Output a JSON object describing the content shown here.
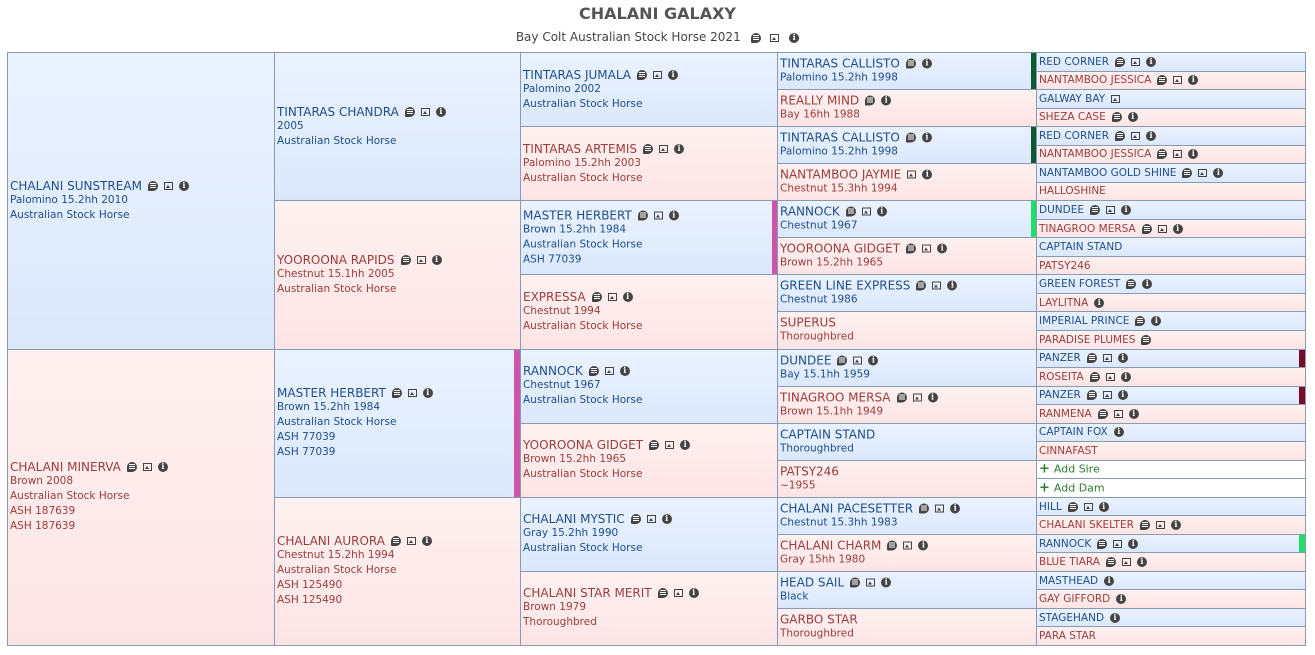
{
  "title": "CHALANI GALAXY",
  "subtitle": "Bay Colt Australian Stock Horse 2021",
  "add_sire": "Add Sire",
  "add_dam": "Add Dam",
  "gen1": [
    {
      "name": "CHALANI SUNSTREAM",
      "lines": [
        "Palomino 15.2hh 2010",
        "Australian Stock Horse"
      ]
    },
    {
      "name": "CHALANI MINERVA",
      "lines": [
        "Brown 2008",
        "Australian Stock Horse",
        "ASH 187639",
        "ASH 187639"
      ]
    }
  ],
  "gen2": [
    {
      "name": "TINTARAS CHANDRA",
      "lines": [
        "2005",
        "Australian Stock Horse"
      ]
    },
    {
      "name": "YOOROONA RAPIDS",
      "lines": [
        "Chestnut 15.1hh 2005",
        "Australian Stock Horse"
      ]
    },
    {
      "name": "MASTER HERBERT",
      "lines": [
        "Brown 15.2hh 1984",
        "Australian Stock Horse",
        "ASH 77039",
        "ASH 77039"
      ]
    },
    {
      "name": "CHALANI AURORA",
      "lines": [
        "Chestnut 15.2hh 1994",
        "Australian Stock Horse",
        "ASH 125490",
        "ASH 125490"
      ]
    }
  ],
  "gen3": [
    {
      "name": "TINTARAS JUMALA",
      "lines": [
        "Palomino 2002",
        "Australian Stock Horse"
      ]
    },
    {
      "name": "TINTARAS ARTEMIS",
      "lines": [
        "Palomino 15.2hh 2003",
        "Australian Stock Horse"
      ]
    },
    {
      "name": "MASTER HERBERT",
      "lines": [
        "Brown 15.2hh 1984",
        "Australian Stock Horse",
        "ASH 77039"
      ]
    },
    {
      "name": "EXPRESSA",
      "lines": [
        "Chestnut 1994",
        "Australian Stock Horse"
      ]
    },
    {
      "name": "RANNOCK",
      "lines": [
        "Chestnut 1967",
        "Australian Stock Horse"
      ]
    },
    {
      "name": "YOOROONA GIDGET",
      "lines": [
        "Brown 15.2hh 1965",
        "Australian Stock Horse"
      ]
    },
    {
      "name": "CHALANI MYSTIC",
      "lines": [
        "Gray 15.2hh 1990",
        "Australian Stock Horse"
      ]
    },
    {
      "name": "CHALANI STAR MERIT",
      "lines": [
        "Brown 1979",
        "Thoroughbred"
      ]
    }
  ],
  "gen4": [
    {
      "name": "TINTARAS CALLISTO",
      "lines": [
        "Palomino 15.2hh 1998"
      ]
    },
    {
      "name": "REALLY MIND",
      "lines": [
        "Bay 16hh 1988"
      ]
    },
    {
      "name": "TINTARAS CALLISTO",
      "lines": [
        "Palomino 15.2hh 1998"
      ]
    },
    {
      "name": "NANTAMBOO JAYMIE",
      "lines": [
        "Chestnut 15.3hh 1994"
      ]
    },
    {
      "name": "RANNOCK",
      "lines": [
        "Chestnut 1967"
      ]
    },
    {
      "name": "YOOROONA GIDGET",
      "lines": [
        "Brown 15.2hh 1965"
      ]
    },
    {
      "name": "GREEN LINE EXPRESS",
      "lines": [
        "Chestnut 1986"
      ]
    },
    {
      "name": "SUPERUS",
      "lines": [
        "Thoroughbred"
      ]
    },
    {
      "name": "DUNDEE",
      "lines": [
        "Bay 15.1hh 1959"
      ]
    },
    {
      "name": "TINAGROO MERSA",
      "lines": [
        "Brown 15.1hh 1949"
      ]
    },
    {
      "name": "CAPTAIN STAND",
      "lines": [
        "Thoroughbred"
      ]
    },
    {
      "name": "PATSY246",
      "lines": [
        "~1955"
      ]
    },
    {
      "name": "CHALANI PACESETTER",
      "lines": [
        "Chestnut 15.3hh 1983"
      ]
    },
    {
      "name": "CHALANI CHARM",
      "lines": [
        "Gray 15hh 1980"
      ]
    },
    {
      "name": "HEAD SAIL",
      "lines": [
        "Black"
      ]
    },
    {
      "name": "GARBO STAR",
      "lines": [
        "Thoroughbred"
      ]
    }
  ],
  "gen5": [
    {
      "name": "RED CORNER"
    },
    {
      "name": "NANTAMBOO JESSICA"
    },
    {
      "name": "GALWAY BAY"
    },
    {
      "name": "SHEZA CASE"
    },
    {
      "name": "RED CORNER"
    },
    {
      "name": "NANTAMBOO JESSICA"
    },
    {
      "name": "NANTAMBOO GOLD SHINE"
    },
    {
      "name": "HALLOSHINE"
    },
    {
      "name": "DUNDEE"
    },
    {
      "name": "TINAGROO MERSA"
    },
    {
      "name": "CAPTAIN STAND"
    },
    {
      "name": "PATSY246"
    },
    {
      "name": "GREEN FOREST"
    },
    {
      "name": "LAYLITNA"
    },
    {
      "name": "IMPERIAL PRINCE"
    },
    {
      "name": "PARADISE PLUMES"
    },
    {
      "name": "PANZER"
    },
    {
      "name": "ROSEITA"
    },
    {
      "name": "PANZER"
    },
    {
      "name": "RANMENA"
    },
    {
      "name": "CAPTAIN FOX"
    },
    {
      "name": "CINNAFAST"
    },
    {
      "name": "",
      "add": "sire"
    },
    {
      "name": "",
      "add": "dam"
    },
    {
      "name": "HILL"
    },
    {
      "name": "CHALANI SKELTER"
    },
    {
      "name": "RANNOCK"
    },
    {
      "name": "BLUE TIARA"
    },
    {
      "name": "MASTHEAD"
    },
    {
      "name": "GAY GIFFORD"
    },
    {
      "name": "STAGEHAND"
    },
    {
      "name": "PARA STAR"
    }
  ],
  "colors": {
    "dark_green": "#0b5a32",
    "green": "#22dd66",
    "magenta": "#cc55aa",
    "maroon": "#7a0b2a"
  }
}
